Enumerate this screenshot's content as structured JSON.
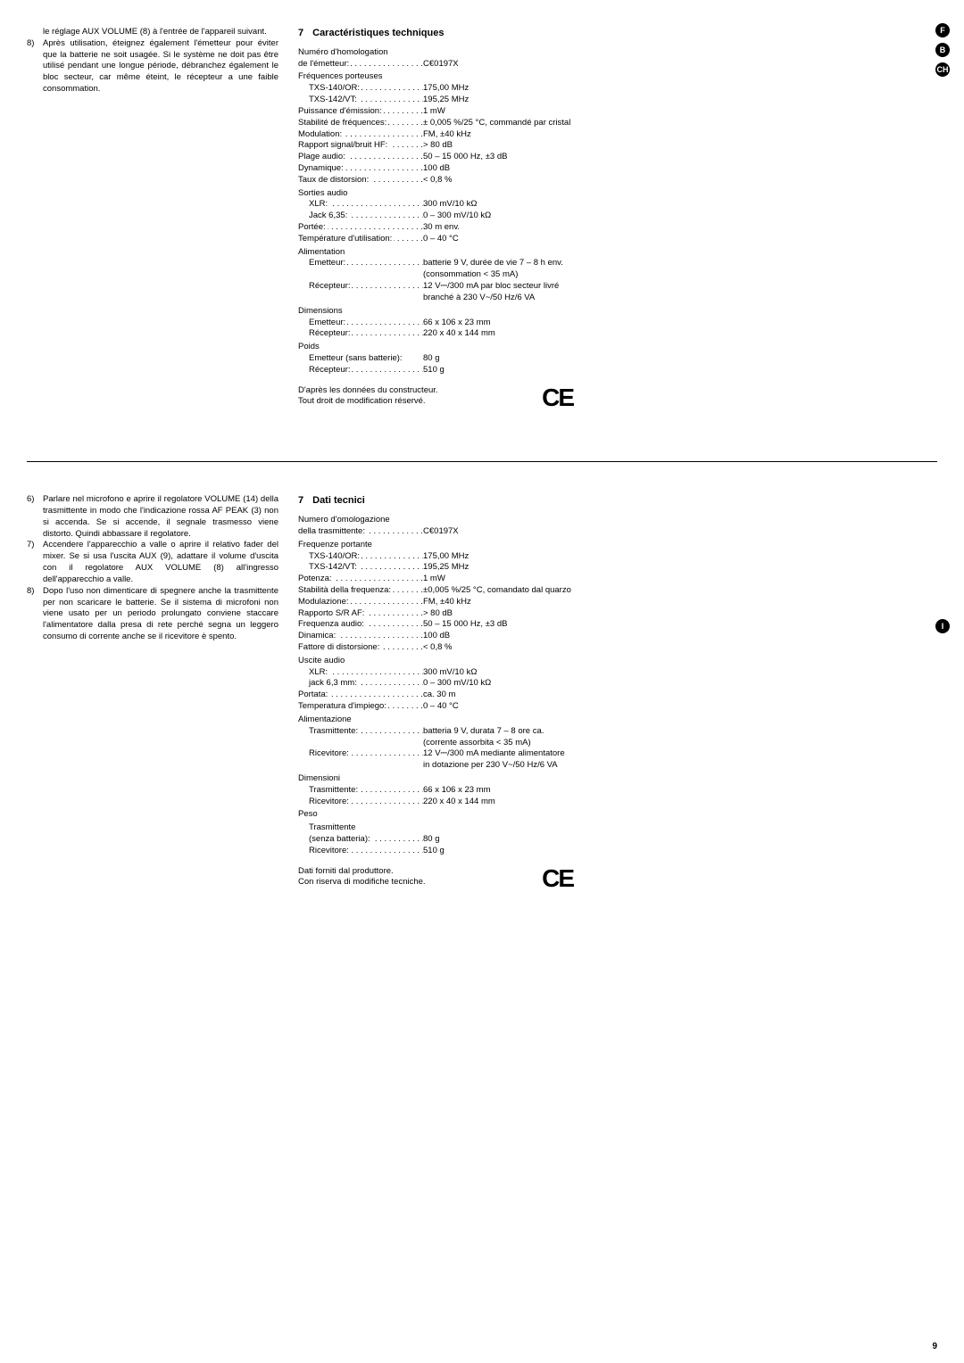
{
  "badges": {
    "f": "F",
    "b": "B",
    "ch": "CH",
    "i": "I"
  },
  "fr": {
    "left": {
      "p0": "le réglage AUX VOLUME (8) à l'entrée de l'appareil suivant.",
      "items": [
        {
          "num": "8)",
          "txt": "Après utilisation, éteignez également l'émetteur pour éviter que la batterie ne soit usagée. Si le système ne doit pas être utilisé pendant une longue période, débranchez également le bloc secteur, car même éteint, le récepteur a une faible consommation."
        }
      ]
    },
    "title_num": "7",
    "title": "Caractéristiques techniques",
    "specs": [
      {
        "type": "group",
        "label": "Numéro d'homologation"
      },
      {
        "type": "row",
        "label": "de l'émetteur:",
        "val": "0197X",
        "ce": true
      },
      {
        "type": "group",
        "label": "Fréquences porteuses"
      },
      {
        "type": "sub",
        "label": "TXS-140/OR:",
        "val": "175,00 MHz"
      },
      {
        "type": "sub",
        "label": "TXS-142/VT:",
        "val": "195,25 MHz"
      },
      {
        "type": "row",
        "label": "Puissance d'émission:",
        "val": "1 mW"
      },
      {
        "type": "row",
        "label": "Stabilité de fréquences:",
        "val": "± 0,005 %/25 °C, commandé par cristal"
      },
      {
        "type": "row",
        "label": "Modulation:",
        "val": "FM, ±40 kHz"
      },
      {
        "type": "row",
        "label": "Rapport signal/bruit HF:",
        "val": "> 80 dB"
      },
      {
        "type": "row",
        "label": "Plage audio:",
        "val": "50 – 15 000 Hz, ±3 dB"
      },
      {
        "type": "row",
        "label": "Dynamique:",
        "val": "100 dB"
      },
      {
        "type": "row",
        "label": "Taux de distorsion:",
        "val": "< 0,8 %"
      },
      {
        "type": "group",
        "label": "Sorties audio"
      },
      {
        "type": "sub",
        "label": "XLR:",
        "val": "300 mV/10 kΩ"
      },
      {
        "type": "sub",
        "label": "Jack 6,35:",
        "val": "0 – 300 mV/10 kΩ"
      },
      {
        "type": "row",
        "label": "Portée:",
        "val": "30 m env."
      },
      {
        "type": "row",
        "label": "Température d'utilisation:",
        "val": "0 – 40 °C"
      },
      {
        "type": "group",
        "label": "Alimentation"
      },
      {
        "type": "sub",
        "label": "Emetteur:",
        "val": "batterie 9 V, durée de vie 7 – 8 h env. (consommation < 35 mA)"
      },
      {
        "type": "sub",
        "label": "Récepteur:",
        "val": "12 V⎓/300 mA par bloc secteur livré branché à 230 V~/50 Hz/6 VA"
      },
      {
        "type": "group",
        "label": "Dimensions"
      },
      {
        "type": "sub",
        "label": "Emetteur:",
        "val": "66 x 106 x 23 mm",
        "wide": true
      },
      {
        "type": "sub",
        "label": "Récepteur:",
        "val": "220 x 40 x 144 mm"
      },
      {
        "type": "group",
        "label": "Poids"
      },
      {
        "type": "sub",
        "label": "Emetteur (sans batterie):",
        "val": "80 g",
        "nodots": true
      },
      {
        "type": "sub",
        "label": "Récepteur:",
        "val": "510 g"
      }
    ],
    "foot1": "D'après les données du constructeur.",
    "foot2": "Tout droit de modification réservé."
  },
  "it": {
    "left": {
      "items": [
        {
          "num": "6)",
          "txt": "Parlare nel microfono e aprire il regolatore VOLUME (14) della trasmittente in modo che l'indicazione rossa AF PEAK (3) non si accenda. Se si accende, il segnale trasmesso viene distorto. Quindi abbassare il regolatore."
        },
        {
          "num": "7)",
          "txt": "Accendere l'apparecchio a valle o aprire il relativo fader del mixer. Se si usa l'uscita AUX (9), adattare il volume d'uscita con il regolatore AUX VOLUME (8) all'ingresso dell'apparecchio a valle."
        },
        {
          "num": "8)",
          "txt": "Dopo l'uso non dimenticare di spegnere anche la trasmittente per non scaricare le batterie. Se il sistema di microfoni non viene usato per un periodo prolungato conviene staccare l'alimentatore dalla presa di rete perché segna un leggero consumo di corrente anche se il ricevitore è spento."
        }
      ]
    },
    "title_num": "7",
    "title": "Dati tecnici",
    "specs": [
      {
        "type": "group",
        "label": "Numero d'omologazione"
      },
      {
        "type": "row",
        "label": "della trasmittente:",
        "val": "0197X",
        "ce": true
      },
      {
        "type": "group",
        "label": "Frequenze portante"
      },
      {
        "type": "sub",
        "label": "TXS-140/OR:",
        "val": "175,00 MHz"
      },
      {
        "type": "sub",
        "label": "TXS-142/VT:",
        "val": "195,25 MHz"
      },
      {
        "type": "row",
        "label": "Potenza:",
        "val": "1 mW"
      },
      {
        "type": "row",
        "label": "Stabilità della frequenza:",
        "val": "±0,005 %/25 °C, comandato dal quarzo"
      },
      {
        "type": "row",
        "label": "Modulazione:",
        "val": "FM, ±40 kHz"
      },
      {
        "type": "row",
        "label": "Rapporto S/R AF:",
        "val": "> 80 dB"
      },
      {
        "type": "row",
        "label": "Frequenza audio:",
        "val": "50 – 15 000 Hz, ±3 dB"
      },
      {
        "type": "row",
        "label": "Dinamica:",
        "val": "100 dB"
      },
      {
        "type": "row",
        "label": "Fattore di distorsione:",
        "val": "< 0,8 %"
      },
      {
        "type": "group",
        "label": "Uscite audio"
      },
      {
        "type": "sub",
        "label": "XLR:",
        "val": "300 mV/10 kΩ"
      },
      {
        "type": "sub",
        "label": "jack 6,3 mm:",
        "val": "0 – 300 mV/10 kΩ"
      },
      {
        "type": "row",
        "label": "Portata:",
        "val": "ca. 30 m"
      },
      {
        "type": "row",
        "label": "Temperatura d'impiego:",
        "val": "0 – 40 °C"
      },
      {
        "type": "group",
        "label": "Alimentazione"
      },
      {
        "type": "sub",
        "label": "Trasmittente:",
        "val": "batteria 9 V, durata 7 – 8 ore ca. (corrente assorbita < 35 mA)"
      },
      {
        "type": "sub",
        "label": "Ricevitore:",
        "val": "12 V⎓/300 mA mediante alimentatore in dotazione per 230 V~/50 Hz/6 VA"
      },
      {
        "type": "group",
        "label": "Dimensioni"
      },
      {
        "type": "sub",
        "label": "Trasmittente:",
        "val": "66 x 106 x 23 mm",
        "wide": true
      },
      {
        "type": "sub",
        "label": "Ricevitore:",
        "val": "220 x 40 x 144 mm"
      },
      {
        "type": "group",
        "label": "Peso"
      },
      {
        "type": "subgroup",
        "label": "Trasmittente"
      },
      {
        "type": "sub",
        "label": "(senza batteria):",
        "val": "80 g",
        "wide": true
      },
      {
        "type": "sub",
        "label": "Ricevitore:",
        "val": "510 g"
      }
    ],
    "foot1": "Dati forniti dal produttore.",
    "foot2": "Con riserva di modifiche tecniche."
  },
  "pagenum": "9",
  "ce_glyph": "CE"
}
